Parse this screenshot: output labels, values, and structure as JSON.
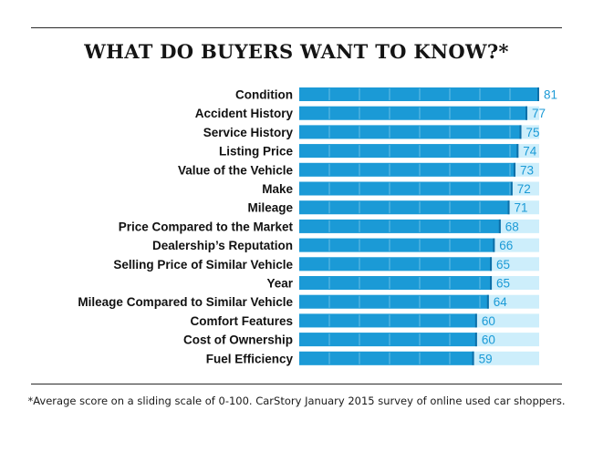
{
  "chart_data": {
    "type": "bar",
    "orientation": "horizontal",
    "title": "WHAT DO BUYERS WANT TO KNOW?*",
    "categories": [
      "Condition",
      "Accident History",
      "Service History",
      "Listing Price",
      "Value of the Vehicle",
      "Make",
      "Mileage",
      "Price Compared to the Market",
      "Dealership’s Reputation",
      "Selling Price of Similar Vehicle",
      "Year",
      "Mileage Compared to Similar Vehicle",
      "Comfort Features",
      "Cost of Ownership",
      "Fuel Efficiency"
    ],
    "values": [
      81,
      77,
      75,
      74,
      73,
      72,
      71,
      68,
      66,
      65,
      65,
      64,
      60,
      60,
      59
    ],
    "xlim": [
      0,
      81
    ],
    "grid": false,
    "legend": "none"
  },
  "colors": {
    "bar": "#1b9ad6",
    "bar_track": "#cdeefb",
    "value_text": "#1b9ad6",
    "title": "#141414"
  },
  "footnote": "*Average score on a sliding scale of 0-100. CarStory January 2015 survey of online used car shoppers."
}
